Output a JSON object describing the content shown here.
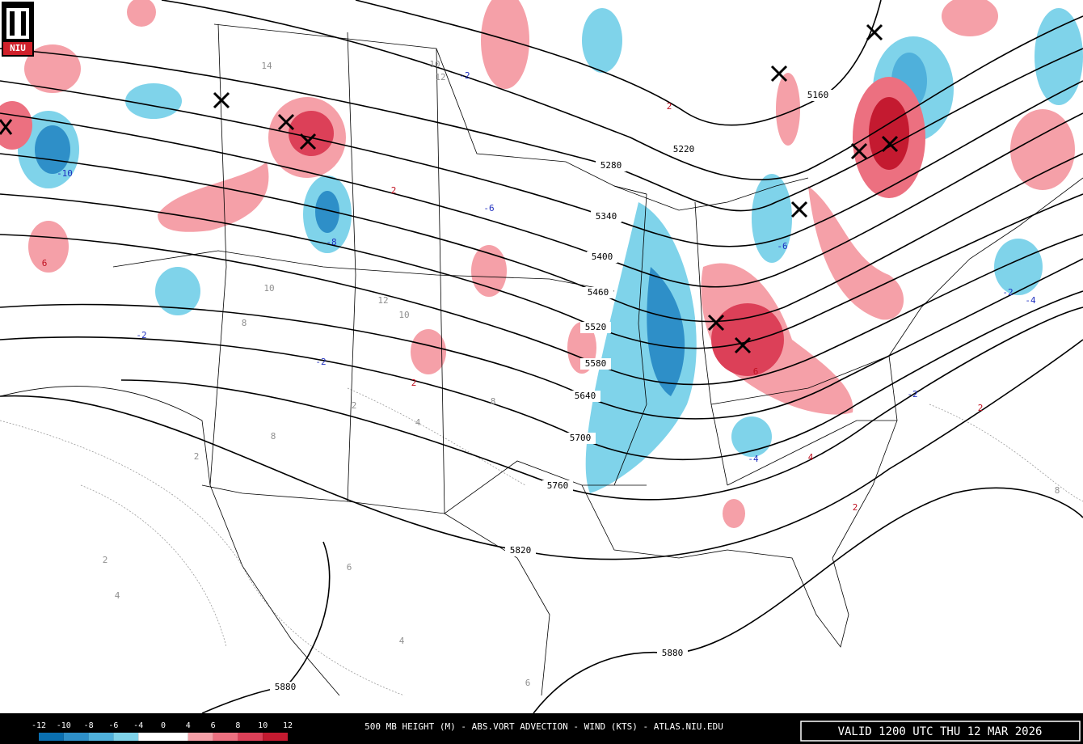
{
  "logo": "NIU",
  "footer": {
    "title": "500 MB HEIGHT (M) - ABS.VORT ADVECTION - WIND (KTS) - ATLAS.NIU.EDU",
    "valid": "VALID 1200 UTC THU 12 MAR 2026"
  },
  "legend": {
    "ticks": [
      -12,
      -10,
      -8,
      -6,
      -4,
      0,
      4,
      6,
      8,
      10,
      12
    ],
    "colors": [
      "#0a6fb0",
      "#2e8fc8",
      "#4fb0db",
      "#7fd3ea",
      "#ffffff",
      "#ffffff",
      "#f5a0a8",
      "#ec7080",
      "#dc4058",
      "#c41a30"
    ]
  },
  "height_contours": [
    5160,
    5220,
    5280,
    5340,
    5400,
    5460,
    5520,
    5580,
    5640,
    5700,
    5760,
    5820,
    5880,
    5880
  ],
  "advection_labels": [
    6,
    -10,
    -8,
    -6,
    -2,
    -2,
    2,
    2,
    -4,
    4,
    6,
    -2,
    2,
    -2,
    -4,
    2,
    -2,
    -6,
    2
  ],
  "vorticity_labels": [
    14,
    10,
    12,
    10,
    8,
    12,
    10,
    8,
    2,
    4,
    8,
    2,
    4,
    6,
    4,
    6,
    2,
    8
  ]
}
